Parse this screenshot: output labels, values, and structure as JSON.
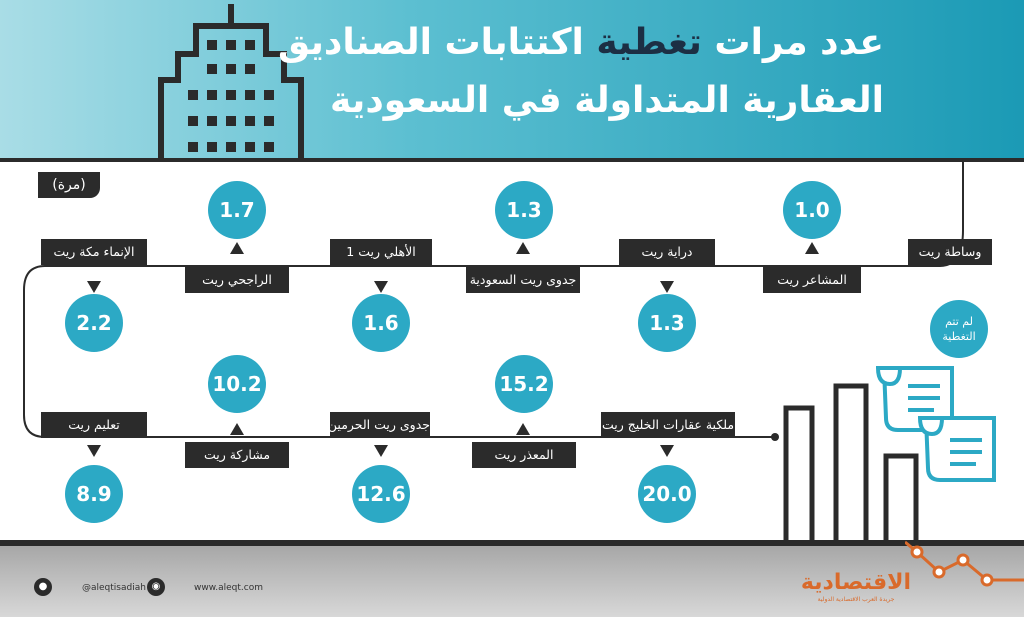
{
  "title": {
    "line1_prefix": "عدد مرات",
    "line1_highlight": "تغطية",
    "line1_suffix": "اكتتابات الصناديق",
    "line2": "العقارية المتداولة في السعودية"
  },
  "unit": "(مرة)",
  "row1": [
    {
      "name": "وساطة ريت",
      "value": "لم تتم التغطية"
    },
    {
      "name": "المشاعر ريت",
      "value": "1.0"
    },
    {
      "name": "دراية ريت",
      "value": "1.3"
    },
    {
      "name": "جدوى ريت السعودية",
      "value": "1.3"
    },
    {
      "name": "الأهلي ريت 1",
      "value": "1.6"
    },
    {
      "name": "الراجحي ريت",
      "value": "1.7"
    },
    {
      "name": "الإنماء مكة ريت",
      "value": "2.2"
    }
  ],
  "row2": [
    {
      "name": "ملكية عقارات الخليج ريت",
      "value": "20.0"
    },
    {
      "name": "المعذر ريت",
      "value": "15.2"
    },
    {
      "name": "جدوى ريت الحرمين",
      "value": "12.6"
    },
    {
      "name": "مشاركة ريت",
      "value": "10.2"
    },
    {
      "name": "تعليم ريت",
      "value": "8.9"
    }
  ],
  "footer": {
    "website": "www.aleqt.com",
    "handle": "@aleqtisadiah",
    "logo": "الاقتصادية",
    "logo_sub": "جريدة العرب الاقتصادية الدولية"
  },
  "colors": {
    "accent": "#2ca9c5",
    "dark": "#2b2b2b",
    "brand": "#d96a2b",
    "header_start": "#a9dde6",
    "header_end": "#1b9ab5"
  },
  "icons": [
    "building-icon",
    "document-icon",
    "bar-chart-icon",
    "trend-line-icon",
    "twitter-icon",
    "instagram-icon"
  ]
}
